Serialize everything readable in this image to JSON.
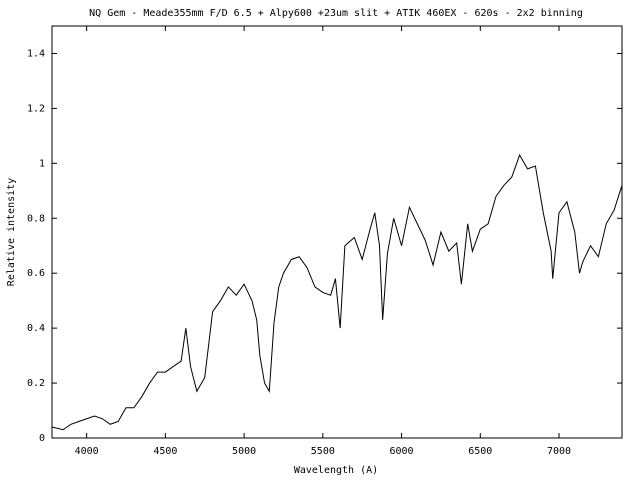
{
  "chart_data": {
    "type": "line",
    "title": "NQ Gem - Meade355mm F/D 6.5 + Alpy600 +23um slit  + ATIK 460EX - 620s - 2x2 binning",
    "xlabel": "Wavelength (A)",
    "ylabel": "Relative intensity",
    "x": [
      3780,
      3850,
      3900,
      3950,
      4000,
      4050,
      4100,
      4150,
      4200,
      4250,
      4300,
      4350,
      4400,
      4450,
      4500,
      4550,
      4600,
      4630,
      4660,
      4700,
      4750,
      4800,
      4850,
      4900,
      4950,
      5000,
      5050,
      5080,
      5100,
      5130,
      5160,
      5190,
      5220,
      5250,
      5300,
      5350,
      5400,
      5450,
      5500,
      5550,
      5580,
      5610,
      5640,
      5700,
      5750,
      5800,
      5830,
      5860,
      5880,
      5910,
      5950,
      6000,
      6050,
      6100,
      6150,
      6200,
      6250,
      6300,
      6350,
      6380,
      6420,
      6450,
      6500,
      6550,
      6600,
      6650,
      6700,
      6750,
      6800,
      6850,
      6900,
      6950,
      6960,
      7000,
      7050,
      7100,
      7130,
      7150,
      7200,
      7250,
      7300,
      7350,
      7400
    ],
    "series": [
      {
        "color": "#000000",
        "values": [
          0.04,
          0.03,
          0.05,
          0.06,
          0.07,
          0.08,
          0.07,
          0.05,
          0.06,
          0.11,
          0.11,
          0.15,
          0.2,
          0.24,
          0.24,
          0.26,
          0.28,
          0.4,
          0.26,
          0.17,
          0.22,
          0.46,
          0.5,
          0.55,
          0.52,
          0.56,
          0.5,
          0.43,
          0.3,
          0.2,
          0.17,
          0.42,
          0.55,
          0.6,
          0.65,
          0.66,
          0.62,
          0.55,
          0.53,
          0.52,
          0.58,
          0.4,
          0.7,
          0.73,
          0.65,
          0.76,
          0.82,
          0.7,
          0.43,
          0.67,
          0.8,
          0.7,
          0.84,
          0.78,
          0.72,
          0.63,
          0.75,
          0.68,
          0.71,
          0.56,
          0.78,
          0.68,
          0.76,
          0.78,
          0.88,
          0.92,
          0.95,
          1.03,
          0.98,
          0.99,
          0.82,
          0.68,
          0.58,
          0.82,
          0.86,
          0.75,
          0.6,
          0.64,
          0.7,
          0.66,
          0.78,
          0.83,
          0.92
        ]
      }
    ],
    "xlim": [
      3780,
      7400
    ],
    "ylim": [
      0,
      1.5
    ],
    "xticks": [
      4000,
      4500,
      5000,
      5500,
      6000,
      6500,
      7000
    ],
    "yticks": [
      0,
      0.2,
      0.4,
      0.6,
      0.8,
      1,
      1.2,
      1.4
    ]
  }
}
